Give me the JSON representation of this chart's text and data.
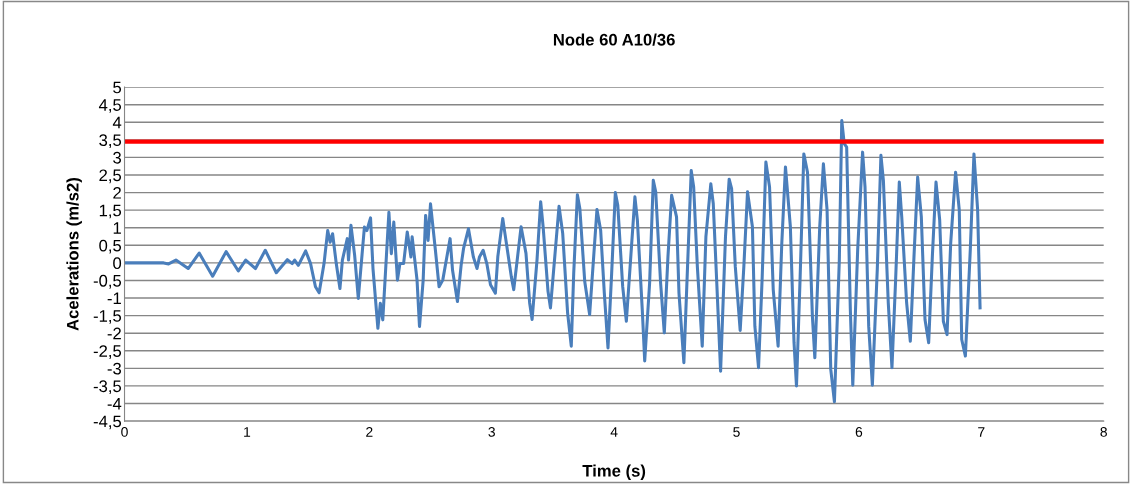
{
  "chart_data": {
    "type": "line",
    "title": "Node 60 A10/36",
    "xlabel": "Time (s)",
    "ylabel": "Acelerations (m/s2)",
    "xlim": [
      0,
      8
    ],
    "xticks": [
      0,
      1,
      2,
      3,
      4,
      5,
      6,
      7,
      8
    ],
    "ylim": [
      -4.5,
      5
    ],
    "yticks": [
      {
        "value": -4.5,
        "label": "-4,5"
      },
      -4,
      {
        "value": -3.5,
        "label": "-3,5"
      },
      -3,
      {
        "value": -2.5,
        "label": "-2,5"
      },
      -2,
      {
        "value": -1.5,
        "label": "-1,5"
      },
      -1,
      {
        "value": -0.5,
        "label": "-0,5"
      },
      0,
      {
        "value": 0.5,
        "label": "0,5"
      },
      1,
      {
        "value": 1.5,
        "label": "1,5"
      },
      2,
      {
        "value": 2.5,
        "label": "2,5"
      },
      3,
      {
        "value": 3.5,
        "label": "3,5"
      },
      4,
      {
        "value": 4.5,
        "label": "4,5"
      },
      5
    ],
    "grid": "y",
    "legend": false,
    "marker": "none",
    "line_style": "solid",
    "ref_lines": [
      {
        "axis": "y",
        "value": 3.45,
        "label": null,
        "color": "#ff0000"
      }
    ],
    "series": [
      {
        "color": "#4a7ebb",
        "x": [
          0,
          0.32,
          0.36,
          0.42,
          0.52,
          0.61,
          0.72,
          0.83,
          0.93,
          0.99,
          1.07,
          1.15,
          1.24,
          1.33,
          1.37,
          1.39,
          1.42,
          1.48,
          1.52,
          1.56,
          1.59,
          1.63,
          1.66,
          1.68,
          1.7,
          1.73,
          1.76,
          1.78,
          1.82,
          1.83,
          1.85,
          1.88,
          1.91,
          1.96,
          1.98,
          2.01,
          2.03,
          2.07,
          2.09,
          2.11,
          2.16,
          2.18,
          2.2,
          2.23,
          2.25,
          2.28,
          2.31,
          2.34,
          2.35,
          2.39,
          2.41,
          2.44,
          2.46,
          2.48,
          2.5,
          2.54,
          2.57,
          2.6,
          2.66,
          2.68,
          2.72,
          2.75,
          2.77,
          2.81,
          2.85,
          2.88,
          2.9,
          2.93,
          2.96,
          2.99,
          3.03,
          3.05,
          3.09,
          3.11,
          3.16,
          3.18,
          3.24,
          3.28,
          3.31,
          3.33,
          3.37,
          3.4,
          3.42,
          3.46,
          3.48,
          3.55,
          3.58,
          3.62,
          3.65,
          3.67,
          3.7,
          3.72,
          3.76,
          3.8,
          3.86,
          3.89,
          3.92,
          3.95,
          3.98,
          4.01,
          4.03,
          4.07,
          4.1,
          4.17,
          4.19,
          4.23,
          4.25,
          4.29,
          4.32,
          4.34,
          4.38,
          4.41,
          4.44,
          4.47,
          4.51,
          4.53,
          4.57,
          4.6,
          4.63,
          4.65,
          4.68,
          4.72,
          4.75,
          4.79,
          4.81,
          4.84,
          4.87,
          4.91,
          4.94,
          4.96,
          4.99,
          5.03,
          5.06,
          5.09,
          5.13,
          5.15,
          5.18,
          5.21,
          5.24,
          5.27,
          5.3,
          5.34,
          5.37,
          5.4,
          5.44,
          5.47,
          5.49,
          5.52,
          5.55,
          5.58,
          5.62,
          5.64,
          5.68,
          5.71,
          5.74,
          5.77,
          5.8,
          5.84,
          5.86,
          5.88,
          5.9,
          5.93,
          5.95,
          5.99,
          6.03,
          6.05,
          6.08,
          6.11,
          6.15,
          6.18,
          6.2,
          6.24,
          6.27,
          6.3,
          6.33,
          6.35,
          6.39,
          6.42,
          6.45,
          6.48,
          6.51,
          6.54,
          6.57,
          6.6,
          6.63,
          6.66,
          6.69,
          6.72,
          6.75,
          6.79,
          6.82,
          6.84,
          6.87,
          6.91,
          6.94,
          6.97,
          6.99
        ],
        "values": [
          0,
          0,
          -0.03,
          0.08,
          -0.16,
          0.28,
          -0.38,
          0.32,
          -0.23,
          0.08,
          -0.16,
          0.36,
          -0.28,
          0.09,
          -0.02,
          0.08,
          -0.07,
          0.34,
          -0.02,
          -0.68,
          -0.85,
          -0.02,
          0.92,
          0.59,
          0.83,
          -0.02,
          -0.73,
          0.08,
          0.69,
          0.08,
          1.07,
          0.22,
          -1.01,
          1.02,
          0.92,
          1.28,
          -0.16,
          -1.86,
          -1.15,
          -1.62,
          1.44,
          0.26,
          1.16,
          -0.49,
          -0.02,
          -0.02,
          0.88,
          0.17,
          0.74,
          -0.49,
          -1.81,
          -0.49,
          1.35,
          0.64,
          1.68,
          0.36,
          -0.68,
          -0.49,
          0.69,
          -0.21,
          -1.1,
          -0.07,
          0.41,
          0.97,
          0.17,
          -0.16,
          0.17,
          0.36,
          -0.02,
          -0.62,
          -0.86,
          0.18,
          1.26,
          0.79,
          -0.39,
          -0.76,
          1.03,
          0.27,
          -1.14,
          -1.61,
          0.08,
          1.74,
          1.03,
          -0.81,
          -1.28,
          1.61,
          0.84,
          -1.42,
          -2.37,
          -0.29,
          1.94,
          1.55,
          -0.53,
          -1.47,
          1.52,
          0.93,
          -0.86,
          -2.42,
          -0.29,
          2.0,
          1.64,
          -0.67,
          -1.66,
          1.88,
          1.22,
          -1.33,
          -2.79,
          -0.58,
          2.35,
          2.02,
          -0.58,
          -1.99,
          0.18,
          1.92,
          1.31,
          -0.86,
          -2.84,
          -0.1,
          2.63,
          2.16,
          -0.1,
          -2.37,
          0.75,
          2.25,
          1.69,
          -0.67,
          -3.08,
          0.75,
          2.38,
          2.11,
          -0.1,
          -1.92,
          -0.1,
          2.02,
          1.03,
          -1.8,
          -2.98,
          -0.39,
          2.87,
          2.16,
          -0.76,
          -2.37,
          0.56,
          2.73,
          1.03,
          -2.27,
          -3.5,
          -0.39,
          3.1,
          2.58,
          -1.52,
          -2.7,
          1.03,
          2.82,
          1.5,
          -3.03,
          -3.95,
          0.08,
          4.05,
          3.39,
          3.29,
          -1.33,
          -3.48,
          0.37,
          3.15,
          2.16,
          -1.8,
          -3.48,
          -0.2,
          3.06,
          2.35,
          -1.14,
          -2.98,
          -0.48,
          2.3,
          1.31,
          -1.14,
          -2.23,
          0.18,
          2.44,
          1.31,
          -1.61,
          -2.27,
          0.18,
          2.3,
          1.22,
          -1.66,
          -2.04,
          0.56,
          2.58,
          1.5,
          -2.18,
          -2.65,
          0.37,
          3.1,
          1.5,
          -1.28
        ]
      }
    ]
  }
}
